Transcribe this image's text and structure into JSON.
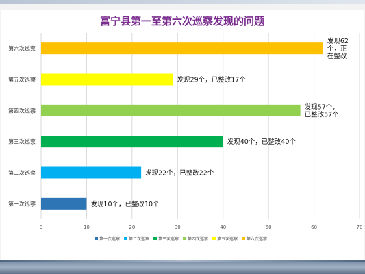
{
  "chart_data": {
    "type": "bar",
    "orientation": "horizontal",
    "title": "富宁县第一至第六次巡察发现的问题",
    "xlabel": "",
    "ylabel": "",
    "xlim": [
      0,
      70
    ],
    "x_ticks": [
      0,
      10,
      20,
      30,
      40,
      50,
      60,
      70
    ],
    "grid": true,
    "legend_position": "bottom",
    "series": [
      {
        "name": "第一次巡察",
        "category": "第一次巡察",
        "value": 10,
        "color": "#2e75b6",
        "label_lines": [
          "发现10个，已整改10个"
        ]
      },
      {
        "name": "第二次巡察",
        "category": "第二次巡察",
        "value": 22,
        "color": "#00b0f0",
        "label_lines": [
          "发现22个，已整改22个"
        ]
      },
      {
        "name": "第三次巡察",
        "category": "第三次巡察",
        "value": 40,
        "color": "#00b050",
        "label_lines": [
          "发现40个，已整改40个"
        ]
      },
      {
        "name": "第四次巡察",
        "category": "第四次巡察",
        "value": 57,
        "color": "#92d050",
        "label_lines": [
          "发现57个，",
          "已整改57个"
        ]
      },
      {
        "name": "第五次巡察",
        "category": "第五次巡察",
        "value": 29,
        "color": "#ffff00",
        "label_lines": [
          "发现29个，已整改17个"
        ]
      },
      {
        "name": "第六次巡察",
        "category": "第六次巡察",
        "value": 62,
        "color": "#ffc000",
        "label_lines": [
          "发现62",
          "个，正",
          "在整改"
        ]
      }
    ]
  }
}
